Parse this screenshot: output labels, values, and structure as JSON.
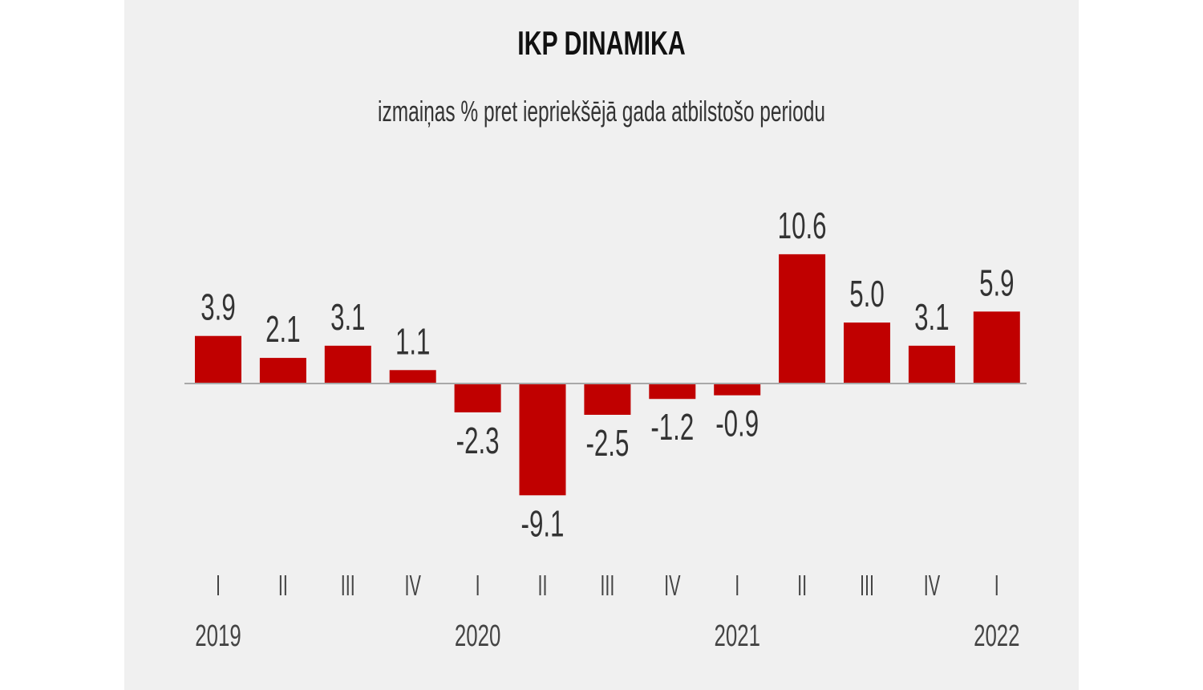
{
  "chart_data": {
    "type": "bar",
    "title": "IKP DINAMIKA",
    "subtitle": "izmaiņas % pret iepriekšējā gada atbilstošo periodu",
    "categories": [
      "I",
      "II",
      "III",
      "IV",
      "I",
      "II",
      "III",
      "IV",
      "I",
      "II",
      "III",
      "IV",
      "I"
    ],
    "values": [
      3.9,
      2.1,
      3.1,
      1.1,
      -2.3,
      -9.1,
      -2.5,
      -1.2,
      -0.9,
      10.6,
      5.0,
      3.1,
      5.9
    ],
    "value_labels": [
      "3.9",
      "2.1",
      "3.1",
      "1.1",
      "-2.3",
      "-9.1",
      "-2.5",
      "-1.2",
      "-0.9",
      "10.6",
      "5.0",
      "3.1",
      "5.9"
    ],
    "years": [
      {
        "label": "2019",
        "index": 0
      },
      {
        "label": "2020",
        "index": 4
      },
      {
        "label": "2021",
        "index": 8
      },
      {
        "label": "2022",
        "index": 12
      }
    ],
    "bar_color": "#c00000",
    "grid": false,
    "legend": "none"
  }
}
